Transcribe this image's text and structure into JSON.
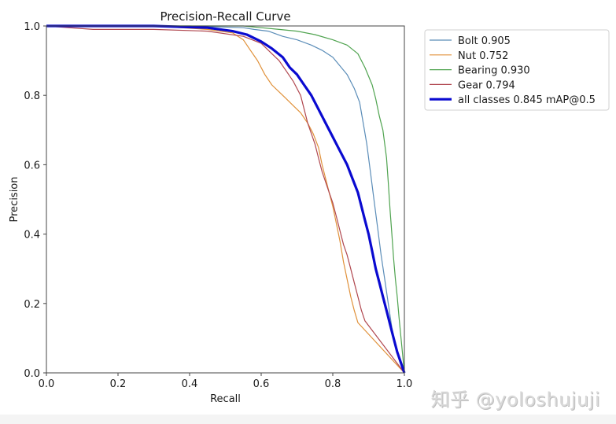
{
  "chart_data": {
    "type": "line",
    "title": "Precision-Recall Curve",
    "xlabel": "Recall",
    "ylabel": "Precision",
    "xlim": [
      0,
      1
    ],
    "ylim": [
      0,
      1
    ],
    "xticks": [
      "0.0",
      "0.2",
      "0.4",
      "0.6",
      "0.8",
      "1.0"
    ],
    "yticks": [
      "0.0",
      "0.2",
      "0.4",
      "0.6",
      "0.8",
      "1.0"
    ],
    "grid": false,
    "legend_position": "outside-top-right",
    "series": [
      {
        "name": "Bolt 0.905",
        "color": "#5b8db8",
        "width": "thin",
        "x": [
          0.0,
          0.4,
          0.55,
          0.58,
          0.62,
          0.66,
          0.7,
          0.74,
          0.77,
          0.8,
          0.82,
          0.84,
          0.86,
          0.875,
          0.885,
          0.895,
          0.905,
          0.915,
          0.925,
          0.935,
          0.945,
          0.955,
          0.965,
          0.975,
          1.0
        ],
        "y": [
          1.0,
          1.0,
          0.995,
          0.99,
          0.985,
          0.97,
          0.96,
          0.945,
          0.93,
          0.91,
          0.885,
          0.86,
          0.82,
          0.78,
          0.72,
          0.66,
          0.58,
          0.5,
          0.42,
          0.34,
          0.27,
          0.2,
          0.13,
          0.08,
          0.0
        ]
      },
      {
        "name": "Nut 0.752",
        "color": "#e0913a",
        "width": "thin",
        "x": [
          0.0,
          0.3,
          0.45,
          0.52,
          0.55,
          0.57,
          0.59,
          0.61,
          0.63,
          0.65,
          0.67,
          0.69,
          0.71,
          0.73,
          0.745,
          0.76,
          0.77,
          0.78,
          0.79,
          0.8,
          0.81,
          0.82,
          0.83,
          0.84,
          0.85,
          0.86,
          0.87,
          1.0
        ],
        "y": [
          1.0,
          1.0,
          0.99,
          0.98,
          0.96,
          0.93,
          0.9,
          0.86,
          0.83,
          0.81,
          0.79,
          0.77,
          0.75,
          0.72,
          0.69,
          0.65,
          0.6,
          0.56,
          0.52,
          0.48,
          0.43,
          0.38,
          0.32,
          0.27,
          0.22,
          0.18,
          0.145,
          0.0
        ]
      },
      {
        "name": "Bearing 0.930",
        "color": "#4fa34f",
        "width": "thin",
        "x": [
          0.0,
          0.45,
          0.55,
          0.6,
          0.65,
          0.7,
          0.75,
          0.8,
          0.84,
          0.87,
          0.89,
          0.91,
          0.92,
          0.93,
          0.94,
          0.95,
          0.955,
          0.96,
          0.965,
          0.97,
          0.975,
          0.98,
          0.985,
          1.0
        ],
        "y": [
          1.0,
          1.0,
          1.0,
          0.995,
          0.99,
          0.985,
          0.975,
          0.96,
          0.945,
          0.92,
          0.88,
          0.83,
          0.79,
          0.74,
          0.7,
          0.62,
          0.55,
          0.47,
          0.4,
          0.33,
          0.27,
          0.22,
          0.16,
          0.0
        ]
      },
      {
        "name": "Gear 0.794",
        "color": "#b0474f",
        "width": "thin",
        "x": [
          0.0,
          0.13,
          0.3,
          0.45,
          0.55,
          0.6,
          0.63,
          0.65,
          0.67,
          0.69,
          0.71,
          0.72,
          0.73,
          0.74,
          0.75,
          0.76,
          0.77,
          0.78,
          0.79,
          0.8,
          0.81,
          0.82,
          0.83,
          0.84,
          0.85,
          0.86,
          0.87,
          0.88,
          0.89,
          1.0
        ],
        "y": [
          1.0,
          0.99,
          0.99,
          0.985,
          0.97,
          0.95,
          0.92,
          0.9,
          0.87,
          0.84,
          0.8,
          0.76,
          0.72,
          0.69,
          0.66,
          0.62,
          0.58,
          0.55,
          0.52,
          0.49,
          0.45,
          0.41,
          0.37,
          0.34,
          0.3,
          0.26,
          0.22,
          0.18,
          0.15,
          0.0
        ]
      },
      {
        "name": "all classes 0.845 mAP@0.5",
        "color": "#0a0ad0",
        "width": "thick",
        "x": [
          0.0,
          0.3,
          0.45,
          0.52,
          0.56,
          0.6,
          0.63,
          0.66,
          0.68,
          0.7,
          0.72,
          0.74,
          0.76,
          0.78,
          0.8,
          0.82,
          0.84,
          0.855,
          0.87,
          0.88,
          0.89,
          0.9,
          0.91,
          0.92,
          0.93,
          0.94,
          0.95,
          0.96,
          0.97,
          0.98,
          1.0
        ],
        "y": [
          1.0,
          1.0,
          0.995,
          0.985,
          0.975,
          0.955,
          0.935,
          0.91,
          0.88,
          0.86,
          0.83,
          0.8,
          0.76,
          0.72,
          0.68,
          0.64,
          0.6,
          0.56,
          0.52,
          0.48,
          0.44,
          0.4,
          0.35,
          0.3,
          0.26,
          0.22,
          0.18,
          0.14,
          0.1,
          0.06,
          0.0
        ]
      }
    ]
  },
  "watermark": "知乎 @yoloshujuji"
}
